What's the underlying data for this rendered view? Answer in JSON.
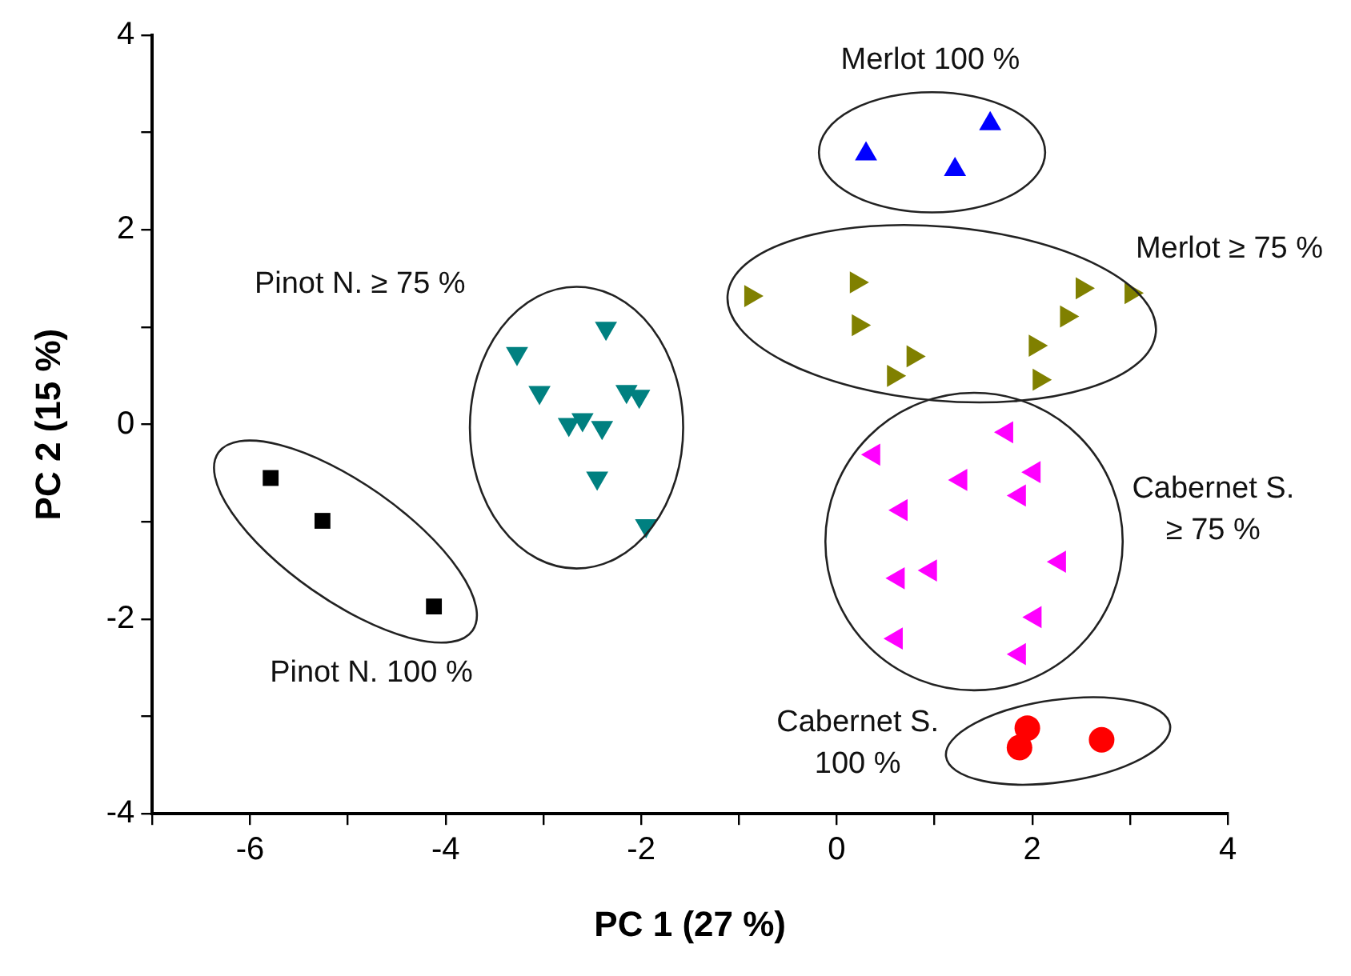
{
  "chart_data": {
    "type": "scatter",
    "xlabel": "PC 1 (27 %)",
    "ylabel": "PC 2 (15 %)",
    "xlim": [
      -7,
      4
    ],
    "xticks": [
      {
        "value": -7,
        "label": null
      },
      -6,
      {
        "value": -5,
        "label": null
      },
      -4,
      {
        "value": -3,
        "label": null
      },
      -2,
      {
        "value": -1,
        "label": null
      },
      0,
      {
        "value": 1,
        "label": null
      },
      2,
      {
        "value": 3,
        "label": null
      },
      4
    ],
    "ylim": [
      -4,
      4
    ],
    "yticks": [
      -4,
      {
        "value": -3,
        "label": null
      },
      -2,
      {
        "value": -1,
        "label": null
      },
      0,
      {
        "value": 1,
        "label": null
      },
      2,
      {
        "value": 3,
        "label": null
      },
      4
    ],
    "grid": false,
    "legend": false,
    "series": [
      {
        "name": "Merlot 100 %",
        "color": "#0000ff",
        "marker": "triangle",
        "x": [
          0.3,
          1.57,
          1.21
        ],
        "values": [
          2.78,
          3.09,
          2.62
        ]
      },
      {
        "name": "Merlot ≥ 75 %",
        "color": "#808000",
        "marker": "triangle-right",
        "x": [
          -0.88,
          0.2,
          0.22,
          0.78,
          0.58,
          2.51,
          3.01,
          2.35,
          2.03,
          2.07
        ],
        "values": [
          1.32,
          1.46,
          1.02,
          0.7,
          0.5,
          1.4,
          1.35,
          1.11,
          0.81,
          0.46
        ]
      },
      {
        "name": "Pinot N. ≥ 75 %",
        "color": "#008080",
        "marker": "triangle-down",
        "x": [
          -2.36,
          -3.27,
          -3.04,
          -2.15,
          -2.02,
          -2.74,
          -2.6,
          -2.4,
          -2.45,
          -1.95
        ],
        "values": [
          0.99,
          0.73,
          0.33,
          0.34,
          0.29,
          0.0,
          0.05,
          -0.03,
          -0.55,
          -1.04
        ]
      },
      {
        "name": "Pinot N. 100 %",
        "color": "#000000",
        "marker": "square",
        "x": [
          -5.79,
          -5.26,
          -4.12
        ],
        "values": [
          -0.55,
          -0.99,
          -1.87
        ]
      },
      {
        "name": "Cabernet S. ≥ 75 %",
        "color": "#ff00ff",
        "marker": "triangle-left",
        "x": [
          0.38,
          1.74,
          1.27,
          2.02,
          1.87,
          0.66,
          2.28,
          0.63,
          0.96,
          2.03,
          0.61,
          1.87
        ],
        "values": [
          -0.31,
          -0.08,
          -0.57,
          -0.49,
          -0.73,
          -0.88,
          -1.41,
          -1.58,
          -1.5,
          -1.98,
          -2.2,
          -2.36
        ]
      },
      {
        "name": "Cabernet S. 100 %",
        "color": "#ff0000",
        "marker": "circle",
        "x": [
          1.95,
          1.87,
          2.71
        ],
        "values": [
          -3.12,
          -3.32,
          -3.24
        ]
      }
    ]
  }
}
